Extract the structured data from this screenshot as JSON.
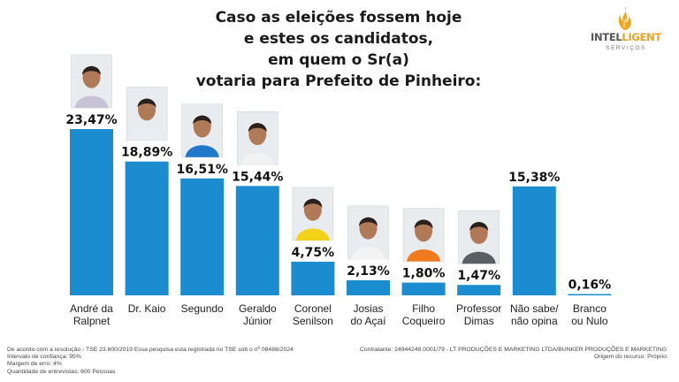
{
  "header": {
    "title_lines": [
      "Caso as eleições fossem hoje",
      "e estes os candidatos,",
      "em quem o Sr(a)",
      "votaria para Prefeito de Pinheiro:"
    ]
  },
  "logo": {
    "text_main": "INTEL",
    "text_highlight": "LIGENT",
    "subtitle": "SERVIÇOS"
  },
  "colors": {
    "bar": "#1a8ccf",
    "value_text": "#111111",
    "label_text": "#222222"
  },
  "chart_data": {
    "type": "bar",
    "categories": [
      [
        "André da",
        "Ralpnet"
      ],
      [
        "Dr. Kaio"
      ],
      [
        "Segundo"
      ],
      [
        "Geraldo",
        "Júnior"
      ],
      [
        "Coronel",
        "Senilson"
      ],
      [
        "Josias",
        "do Açaí"
      ],
      [
        "Filho",
        "Coqueiro"
      ],
      [
        "Professor",
        "Dimas"
      ],
      [
        "Não sabe/",
        "não opina"
      ],
      [
        "Branco",
        "ou Nulo"
      ]
    ],
    "values": [
      23.47,
      18.89,
      16.51,
      15.44,
      4.75,
      2.13,
      1.8,
      1.47,
      15.38,
      0.16
    ],
    "value_labels": [
      "23,47%",
      "18,89%",
      "16,51%",
      "15,44%",
      "4,75%",
      "2,13%",
      "1,80%",
      "1,47%",
      "15,38%",
      "0,16%"
    ],
    "has_photo": [
      true,
      true,
      true,
      true,
      true,
      true,
      true,
      true,
      false,
      false
    ],
    "shirt_colors": [
      "#c9c3d6",
      "#e8eef2",
      "#1f78c8",
      "#f2f2f2",
      "#f3d21a",
      "#f4f4f4",
      "#f07a1e",
      "#5a5f66",
      "",
      ""
    ],
    "ylim": [
      0,
      23.47
    ]
  },
  "footer": {
    "left_lines": [
      "De acordo com a resolução - TSE 23.600/2019 Essa pesquisa esta registrada no TSE sob o nº 08488/2024",
      "Intervalo de confiança: 95%",
      "Margem de erro: 4%",
      "Quantidade de entrevistas: 600 Pessoas"
    ],
    "right_lines": [
      "Contratante: 24944248.0001/79 - LT PRODUÇÕES E MARKETING LTDA/BUNKER PRODUÇÕES E MARKETING",
      "Origem do recurso: Próprio"
    ]
  }
}
